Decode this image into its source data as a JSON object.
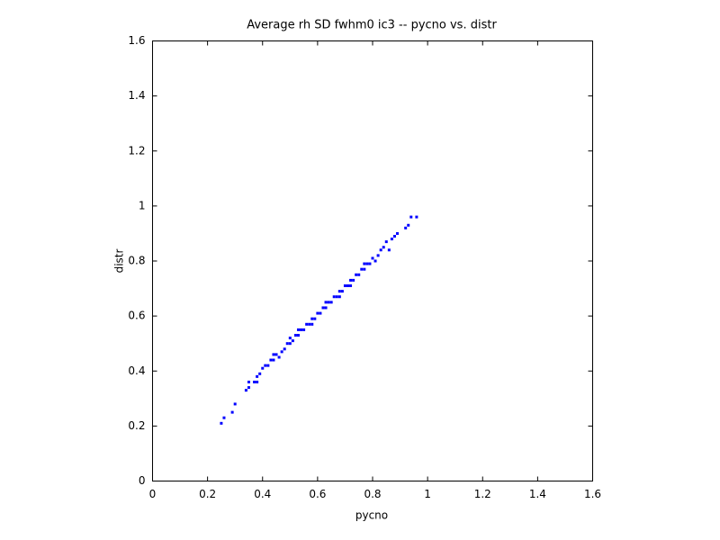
{
  "chart_data": {
    "type": "scatter",
    "title": "Average rh SD fwhm0 ic3 -- pycno vs. distr",
    "x_label": "pycno",
    "y_label": "distr",
    "xlim": [
      0,
      1.6
    ],
    "ylim": [
      0,
      1.6
    ],
    "xticks": [
      0,
      0.2,
      0.4,
      0.6,
      0.8,
      1,
      1.2,
      1.4,
      1.6
    ],
    "yticks": [
      0,
      0.2,
      0.4,
      0.6,
      0.8,
      1,
      1.2,
      1.4,
      1.6
    ],
    "grid": false,
    "series": [
      {
        "name": "distr",
        "color": "#0000ff",
        "x": [
          0.25,
          0.26,
          0.29,
          0.3,
          0.34,
          0.35,
          0.35,
          0.37,
          0.38,
          0.38,
          0.39,
          0.4,
          0.41,
          0.42,
          0.43,
          0.44,
          0.44,
          0.45,
          0.46,
          0.47,
          0.48,
          0.49,
          0.5,
          0.5,
          0.51,
          0.52,
          0.53,
          0.53,
          0.54,
          0.55,
          0.56,
          0.57,
          0.58,
          0.58,
          0.59,
          0.6,
          0.61,
          0.62,
          0.63,
          0.63,
          0.64,
          0.65,
          0.66,
          0.67,
          0.68,
          0.68,
          0.69,
          0.7,
          0.71,
          0.72,
          0.72,
          0.73,
          0.74,
          0.75,
          0.76,
          0.77,
          0.77,
          0.78,
          0.79,
          0.8,
          0.81,
          0.82,
          0.83,
          0.84,
          0.85,
          0.86,
          0.87,
          0.88,
          0.89,
          0.92,
          0.93,
          0.94,
          0.96
        ],
        "values": [
          0.21,
          0.23,
          0.25,
          0.28,
          0.33,
          0.34,
          0.36,
          0.36,
          0.38,
          0.36,
          0.39,
          0.41,
          0.42,
          0.42,
          0.44,
          0.44,
          0.46,
          0.46,
          0.45,
          0.47,
          0.48,
          0.5,
          0.5,
          0.52,
          0.51,
          0.53,
          0.53,
          0.55,
          0.55,
          0.55,
          0.57,
          0.57,
          0.59,
          0.57,
          0.59,
          0.61,
          0.61,
          0.63,
          0.63,
          0.65,
          0.65,
          0.65,
          0.67,
          0.67,
          0.69,
          0.67,
          0.69,
          0.71,
          0.71,
          0.73,
          0.71,
          0.73,
          0.75,
          0.75,
          0.77,
          0.77,
          0.79,
          0.79,
          0.79,
          0.81,
          0.8,
          0.82,
          0.84,
          0.85,
          0.87,
          0.84,
          0.88,
          0.89,
          0.9,
          0.92,
          0.93,
          0.96,
          0.96
        ]
      }
    ]
  }
}
